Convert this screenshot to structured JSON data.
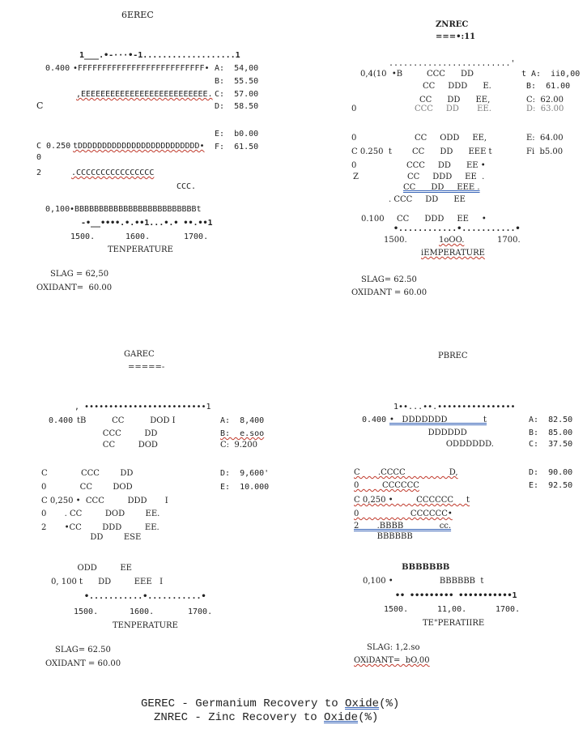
{
  "caption": {
    "l1_prefix": "GEREC - Germanium Recovery to ",
    "l1_word": "Oxide",
    "l1_suffix": "(%)",
    "l2_prefix": "ZNREC - Zinc Recovery to ",
    "l2_word": "Oxide",
    "l2_suffix": "(%)"
  },
  "geRec": {
    "title": "6EREC",
    "topAxis": "1___.•-···•-1...................1",
    "y400": "0.400",
    "rowF": "•FFFFFFFFFFFFFFFFFFFFFFFFFF•",
    "rowE": ",EEEEEEEEEEEEEEEEEEEEEEEEEE.",
    "leftC": "C",
    "leftC2": "C 0.250",
    "rowD": "tDDDDDDDDDDDDDDDDDDDDDDDDD•",
    "left0": "0",
    "left2": "2",
    "rowC": ".CCCCCCCCCCCCCCCC",
    "ccc": "CCC.",
    "y100": "0,100",
    "rowB": "•BBBBBBBBBBBBBBBBBBBBBBBBBt",
    "botAxis": "-•__••••.•.••1...•.• ••.••1",
    "x1": "1500.",
    "x2": "1600.",
    "x3": "1700.",
    "xlabel": "TENPERATURE",
    "legend": [
      "A:  54,00",
      "B:  55.50",
      "C:  57.00",
      "D:  58.50",
      "E:  b0.00",
      "F:  61.50"
    ],
    "slag": "SLAG = 62,50",
    "oxidant": "OXIDANT=  60.00"
  },
  "znRec": {
    "title": "ZNREC",
    "sub": "===•:11",
    "topAxis": ".........................'",
    "y400": "0,4(10  •B",
    "rows": [
      "CCC      DD",
      "CC     DDD      E.",
      "CC      DD      EE,",
      "CCC     DD       EE.",
      "CC     ODD     EE,",
      "CC      DD      EEE t",
      "CCC     DD      EE •",
      "CC     DDD     EE  .",
      "CC      DD     EEE .",
      ". CCC     DD      EE",
      "CC      DDD     EE     •"
    ],
    "leftLabels": [
      "0",
      "0",
      "C 0.250  t",
      "0",
      "Z"
    ],
    "y100": "0.100",
    "botAxis": "•............•...........•",
    "x1": "1500.",
    "x2": "1oOO.",
    "x3": "1700.",
    "xlabel": "iEMPERATURE",
    "legend": [
      "t A:  ii0,00",
      "B:  61.00",
      "C:  62.00",
      "D:  63.00",
      "E:  64.00",
      "Fi  b5.00"
    ],
    "slag": "SLAG= 62.50",
    "oxidant": "OXIDANT = 60.00"
  },
  "gaRec": {
    "title": "GAREC",
    "sub": "=====-",
    "topAxis": ", •••••••••••••••••••••••••1",
    "y400": "0.400",
    "rows": [
      "tB          CC          DOD I",
      "          CCC         DD",
      "          CC         DOD",
      "C             CCC        DD",
      "0             CC        DOD",
      "C 0,250 •  CCC         DDD       I",
      "0       . CC         DOD        EE.",
      "2       •CC        DDD         EE.",
      "                   DD        ESE",
      "              ODD         EE",
      "0, 100 t      DD         EEE   I"
    ],
    "botAxis": "•...........•...........•",
    "x1": "1500.",
    "x2": "1600.",
    "x3": "1700.",
    "xlabel": "TENPERATURE",
    "legend": [
      "A:  8,400",
      "B:  e.soo",
      "C:  9.200",
      "D:  9,600'",
      "E:  10.000"
    ],
    "slag": "SLAG= 62.50",
    "oxidant": "OXIDANT = 60.00"
  },
  "pbRec": {
    "title": "PBREC",
    "topAxis": "1••...••.••••••••••••••••",
    "y400": "0.400",
    "rows": [
      "•   DDDDDDD              t",
      "         DDDDDD",
      "                ODDDDDD.",
      "C       .CCCC                 D,",
      "0         CCCCCC",
      "C 0,250 •         CCCCCC     t",
      "0                    CCCCCC•",
      "2       .BBBB              cc.",
      "         BBBBBB",
      "                 BBBBBBB",
      "0,100 •                  BBBBBB  t"
    ],
    "botAxis": "•• ••••••••• •••••••••••1",
    "x1": "1500.",
    "x2": "11,00.",
    "x3": "1700.",
    "xlabel": "TE\"PERATIIRE",
    "legend": [
      "A:  82.50",
      "B:  85.00",
      "C:  37.50",
      "D:  90.00",
      "E:  92.50"
    ],
    "slag": "SLAG: 1,2.so",
    "oxidant": "OXiDANT=  bO,00"
  }
}
